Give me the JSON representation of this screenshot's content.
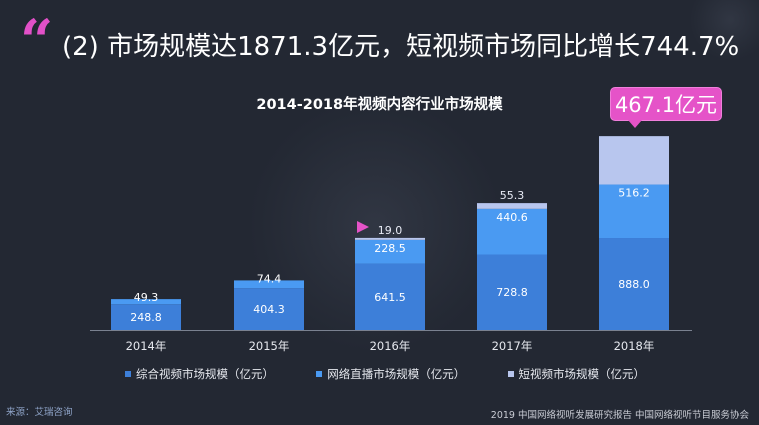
{
  "slide": {
    "quote_glyph": "“",
    "headline": "(2) 市场规模达1871.3亿元，短视频市场同比增长744.7%",
    "source": "来源：艾瑞咨询",
    "footer": "2019 中国网络视听发展研究报告 中国网络视听节目服务协会",
    "callout": "467.1亿元"
  },
  "chart_data": {
    "type": "bar",
    "stacked": true,
    "title": "2014-2018年视频内容行业市场规模",
    "categories": [
      "2014年",
      "2015年",
      "2016年",
      "2017年",
      "2018年"
    ],
    "series": [
      {
        "name": "综合视频市场规模（亿元）",
        "values": [
          248.8,
          404.3,
          641.5,
          728.8,
          888.0
        ],
        "labels": [
          "248.8",
          "404.3",
          "641.5",
          "728.8",
          "888.0"
        ],
        "color": "#3d7fd9"
      },
      {
        "name": "网络直播市场规模（亿元）",
        "values": [
          49.3,
          74.4,
          228.5,
          440.6,
          516.2
        ],
        "labels": [
          "49.3",
          "74.4",
          "228.5",
          "440.6",
          "516.2"
        ],
        "color": "#4a9af2"
      },
      {
        "name": "短视频市场规模（亿元）",
        "values": [
          null,
          null,
          19.0,
          55.3,
          467.1
        ],
        "labels": [
          "",
          "",
          "19.0",
          "55.3",
          ""
        ],
        "color": "#b8c6ee"
      }
    ],
    "grid": false,
    "legend": "bottom"
  }
}
